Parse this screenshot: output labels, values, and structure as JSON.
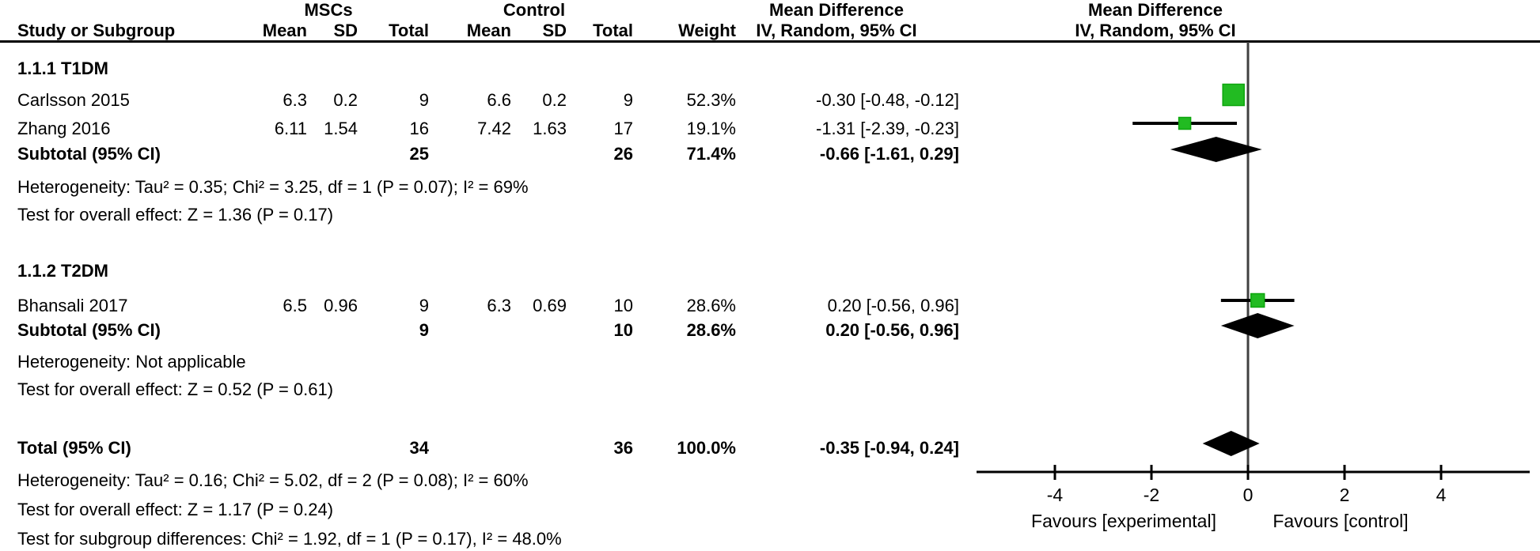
{
  "colors": {
    "marker_green": "#22bb22",
    "marker_green_border": "#0da50d",
    "diamond_black": "#000000",
    "axis_black": "#000000",
    "zero_line_gray": "#404040",
    "text": "#000000"
  },
  "header": {
    "group_experimental": "MSCs",
    "group_control": "Control",
    "study_col": "Study or Subgroup",
    "mean1": "Mean",
    "sd1": "SD",
    "total1": "Total",
    "mean2": "Mean",
    "sd2": "SD",
    "total2": "Total",
    "weight": "Weight",
    "effect_title": "Mean Difference",
    "effect_subtitle": "IV, Random, 95% CI",
    "plot_title": "Mean Difference",
    "plot_subtitle": "IV, Random, 95% CI"
  },
  "sections": [
    {
      "id": "t1dm",
      "label": "1.1.1 T1DM",
      "studies": [
        {
          "id": "carlsson",
          "name": "Carlsson 2015",
          "mean1": "6.3",
          "sd1": "0.2",
          "total1": "9",
          "mean2": "6.6",
          "sd2": "0.2",
          "total2": "9",
          "weight": "52.3%",
          "ci_text": "-0.30 [-0.48, -0.12]",
          "est": -0.3,
          "lo": -0.48,
          "hi": -0.12,
          "weight_pct": 52.3
        },
        {
          "id": "zhang",
          "name": "Zhang 2016",
          "mean1": "6.11",
          "sd1": "1.54",
          "total1": "16",
          "mean2": "7.42",
          "sd2": "1.63",
          "total2": "17",
          "weight": "19.1%",
          "ci_text": "-1.31 [-2.39, -0.23]",
          "est": -1.31,
          "lo": -2.39,
          "hi": -0.23,
          "weight_pct": 19.1
        }
      ],
      "subtotal": {
        "label": "Subtotal (95% CI)",
        "total1": "25",
        "total2": "26",
        "weight": "71.4%",
        "ci_text": "-0.66 [-1.61, 0.29]",
        "est": -0.66,
        "lo": -1.61,
        "hi": 0.29
      },
      "notes": [
        "Heterogeneity: Tau² = 0.35; Chi² = 3.25, df = 1 (P = 0.07); I² = 69%",
        "Test for overall effect: Z = 1.36 (P = 0.17)"
      ]
    },
    {
      "id": "t2dm",
      "label": "1.1.2 T2DM",
      "studies": [
        {
          "id": "bhansali",
          "name": "Bhansali 2017",
          "mean1": "6.5",
          "sd1": "0.96",
          "total1": "9",
          "mean2": "6.3",
          "sd2": "0.69",
          "total2": "10",
          "weight": "28.6%",
          "ci_text": "0.20 [-0.56, 0.96]",
          "est": 0.2,
          "lo": -0.56,
          "hi": 0.96,
          "weight_pct": 28.6
        }
      ],
      "subtotal": {
        "label": "Subtotal (95% CI)",
        "total1": "9",
        "total2": "10",
        "weight": "28.6%",
        "ci_text": "0.20 [-0.56, 0.96]",
        "est": 0.2,
        "lo": -0.56,
        "hi": 0.96
      },
      "notes": [
        "Heterogeneity: Not applicable",
        "Test for overall effect: Z = 0.52 (P = 0.61)"
      ]
    }
  ],
  "total": {
    "label": "Total (95% CI)",
    "total1": "34",
    "total2": "36",
    "weight": "100.0%",
    "ci_text": "-0.35 [-0.94, 0.24]",
    "est": -0.35,
    "lo": -0.94,
    "hi": 0.24
  },
  "total_notes": [
    "Heterogeneity: Tau² = 0.16; Chi² = 5.02, df = 2 (P = 0.08); I² = 60%",
    "Test for overall effect: Z = 1.17 (P = 0.24)",
    "Test for subgroup differences: Chi² = 1.92, df = 1 (P = 0.17), I² = 48.0%"
  ],
  "axis": {
    "ticks": [
      "-4",
      "-2",
      "0",
      "2",
      "4"
    ],
    "tick_values": [
      -4,
      -2,
      0,
      2,
      4
    ],
    "favours_left": "Favours [experimental]",
    "favours_right": "Favours [control]"
  },
  "chart_data": {
    "type": "scatter",
    "variant": "forest-plot",
    "effect_measure": "Mean Difference, IV, Random, 95% CI",
    "x_ticks": [
      -4,
      -2,
      0,
      2,
      4
    ],
    "x_range_displayed": [
      -5.6,
      5.9
    ],
    "xlabel_left": "Favours [experimental]",
    "xlabel_right": "Favours [control]",
    "studies": [
      {
        "label": "Carlsson 2015",
        "subgroup": "1.1.1 T1DM",
        "md": -0.3,
        "ci_low": -0.48,
        "ci_high": -0.12,
        "weight_pct": 52.3
      },
      {
        "label": "Zhang 2016",
        "subgroup": "1.1.1 T1DM",
        "md": -1.31,
        "ci_low": -2.39,
        "ci_high": -0.23,
        "weight_pct": 19.1
      },
      {
        "label": "Bhansali 2017",
        "subgroup": "1.1.2 T2DM",
        "md": 0.2,
        "ci_low": -0.56,
        "ci_high": 0.96,
        "weight_pct": 28.6
      }
    ],
    "diamonds": [
      {
        "label": "Subtotal 1.1.1 T1DM",
        "md": -0.66,
        "ci_low": -1.61,
        "ci_high": 0.29,
        "weight_pct": 71.4
      },
      {
        "label": "Subtotal 1.1.2 T2DM",
        "md": 0.2,
        "ci_low": -0.56,
        "ci_high": 0.96,
        "weight_pct": 28.6
      },
      {
        "label": "Total",
        "md": -0.35,
        "ci_low": -0.94,
        "ci_high": 0.24,
        "weight_pct": 100.0
      }
    ],
    "heterogeneity": {
      "t1dm": {
        "tau2": 0.35,
        "chi2": 3.25,
        "df": 1,
        "p": 0.07,
        "i2_pct": 69
      },
      "t2dm": "Not applicable",
      "total": {
        "tau2": 0.16,
        "chi2": 5.02,
        "df": 2,
        "p": 0.08,
        "i2_pct": 60
      },
      "subgroup_differences": {
        "chi2": 1.92,
        "df": 1,
        "p": 0.17,
        "i2_pct": 48.0
      }
    },
    "overall_effect_tests": {
      "t1dm": {
        "z": 1.36,
        "p": 0.17
      },
      "t2dm": {
        "z": 0.52,
        "p": 0.61
      },
      "total": {
        "z": 1.17,
        "p": 0.24
      }
    }
  }
}
